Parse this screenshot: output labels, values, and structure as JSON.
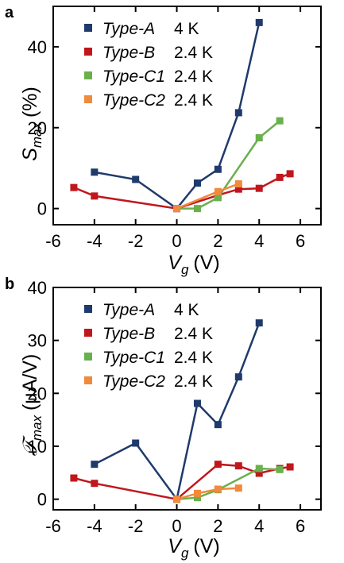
{
  "chart_data": [
    {
      "panel_label": "a",
      "type": "line",
      "ylabel_main": "S",
      "ylabel_sub": "max",
      "ylabel_unit": "(%)",
      "xlabel_main": "V",
      "xlabel_sub": "g",
      "xlabel_unit": "(V)",
      "xlim": [
        -6,
        7
      ],
      "ylim": [
        -4,
        50
      ],
      "xticks": [
        -6,
        -4,
        -2,
        0,
        2,
        4,
        6
      ],
      "xtick_labels": [
        "-6",
        "-4",
        "-2",
        "0",
        "2",
        "4",
        "6"
      ],
      "yticks": [
        0,
        20,
        40
      ],
      "ytick_labels": [
        "0",
        "20",
        "40"
      ],
      "legend_position": "top-left",
      "series": [
        {
          "name": "Type-A",
          "condition": "4 K",
          "color": "#1f3a6b",
          "x": [
            -4,
            -2,
            0,
            1,
            2,
            3,
            4
          ],
          "y": [
            9,
            7.2,
            0,
            6.3,
            9.7,
            23.7,
            46
          ]
        },
        {
          "name": "Type-B",
          "condition": "2.4 K",
          "color": "#c0171d",
          "x": [
            -5,
            -4,
            0,
            2,
            3,
            4,
            5,
            5.5
          ],
          "y": [
            5.2,
            3.1,
            0,
            3.3,
            4.8,
            5.0,
            7.7,
            8.6
          ]
        },
        {
          "name": "Type-C1",
          "condition": "2.4 K",
          "color": "#6ab04c",
          "x": [
            0,
            1,
            2,
            4,
            5
          ],
          "y": [
            0,
            0,
            2.7,
            17.5,
            21.7
          ]
        },
        {
          "name": "Type-C2",
          "condition": "2.4 K",
          "color": "#f08a3c",
          "x": [
            0,
            2,
            3
          ],
          "y": [
            0,
            4.2,
            6.1
          ]
        }
      ]
    },
    {
      "panel_label": "b",
      "type": "line",
      "ylabel_main": "𝒯",
      "ylabel_sub": "max",
      "ylabel_unit": "(μA/V)",
      "xlabel_main": "V",
      "xlabel_sub": "g",
      "xlabel_unit": "(V)",
      "xlim": [
        -6,
        7
      ],
      "ylim": [
        -2,
        40
      ],
      "xticks": [
        -6,
        -4,
        -2,
        0,
        2,
        4,
        6
      ],
      "xtick_labels": [
        "-6",
        "-4",
        "-2",
        "0",
        "2",
        "4",
        "6"
      ],
      "yticks": [
        0,
        10,
        20,
        30,
        40
      ],
      "ytick_labels": [
        "0",
        "10",
        "20",
        "30",
        "40"
      ],
      "legend_position": "top-left",
      "series": [
        {
          "name": "Type-A",
          "condition": "4 K",
          "color": "#1f3a6b",
          "x": [
            -4,
            -2,
            0,
            1,
            2,
            3,
            4
          ],
          "y": [
            6.6,
            10.6,
            0,
            18.1,
            14.1,
            23.1,
            33.3
          ]
        },
        {
          "name": "Type-B",
          "condition": "2.4 K",
          "color": "#c0171d",
          "x": [
            -5,
            -4,
            0,
            2,
            3,
            4,
            5,
            5.5
          ],
          "y": [
            4.0,
            3.0,
            0,
            6.6,
            6.3,
            4.9,
            5.8,
            6.1
          ]
        },
        {
          "name": "Type-C1",
          "condition": "2.4 K",
          "color": "#6ab04c",
          "x": [
            0,
            1,
            2,
            4,
            5
          ],
          "y": [
            0,
            0.3,
            1.8,
            5.8,
            5.6
          ]
        },
        {
          "name": "Type-C2",
          "condition": "2.4 K",
          "color": "#f08a3c",
          "x": [
            0,
            1,
            2,
            3
          ],
          "y": [
            0,
            1.1,
            1.9,
            2.1
          ]
        }
      ]
    }
  ]
}
